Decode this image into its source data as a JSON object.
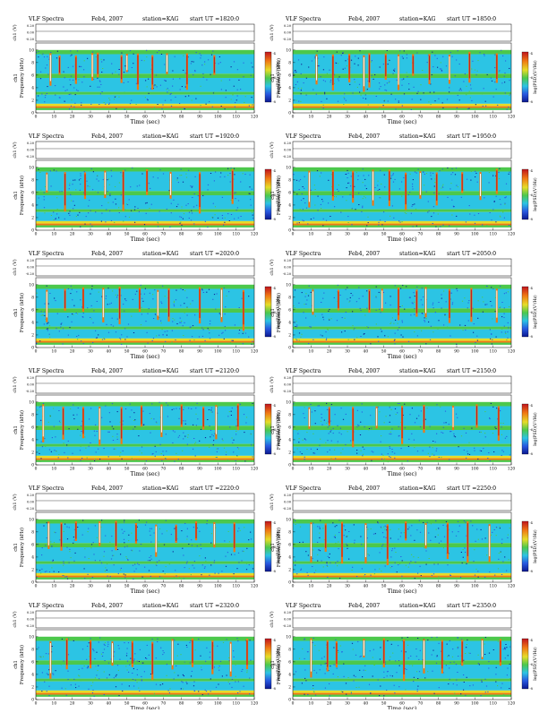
{
  "header": {
    "title": "VLF Spectra",
    "date": "Feb4, 2007",
    "station_label": "station=KAG",
    "start_prefix": "start UT ="
  },
  "axes": {
    "amp_label": "ch1 (V)",
    "amp_ticks": [
      "0.20",
      "0.00",
      "-0.20"
    ],
    "freq_label_ch": "ch1",
    "freq_label": "Frequency (kHz)",
    "freq_ticks": [
      "10",
      "8",
      "6",
      "4",
      "2",
      "0"
    ],
    "time_label": "Time (sec)",
    "time_ticks": [
      "0",
      "10",
      "20",
      "30",
      "40",
      "50",
      "60",
      "70",
      "80",
      "90",
      "100",
      "110",
      "120"
    ],
    "colorbar_label": "log(PSD)(V²/Hz)",
    "colorbar_ticks": [
      "-4",
      "-6",
      "-8"
    ]
  },
  "colors": {
    "high": "#c0141e",
    "upper": "#f07814",
    "mid": "#e6dc28",
    "green": "#4cc84c",
    "cyan": "#2cc4e4",
    "blue": "#2858e0",
    "low": "#0c1890"
  },
  "chart_data": [
    {
      "type": "heatmap",
      "start_ut": "1820:0",
      "x_range_sec": [
        0,
        120
      ],
      "y_range_khz": [
        0,
        10
      ],
      "amp_range_v": [
        -0.2,
        0.2
      ],
      "event_times_sec": [
        8,
        13,
        22,
        31,
        34,
        47,
        50,
        56,
        64,
        72,
        83,
        98
      ]
    },
    {
      "type": "heatmap",
      "start_ut": "1850:0",
      "x_range_sec": [
        0,
        120
      ],
      "y_range_khz": [
        0,
        10
      ],
      "amp_range_v": [
        -0.2,
        0.2
      ],
      "event_times_sec": [
        13,
        22,
        31,
        39,
        42,
        51,
        58,
        66,
        75,
        86,
        97,
        112
      ]
    },
    {
      "type": "heatmap",
      "start_ut": "1920:0",
      "x_range_sec": [
        0,
        120
      ],
      "y_range_khz": [
        0,
        10
      ],
      "amp_range_v": [
        -0.2,
        0.2
      ],
      "event_times_sec": [
        6,
        16,
        27,
        38,
        48,
        61,
        74,
        90,
        108
      ]
    },
    {
      "type": "heatmap",
      "start_ut": "1950:0",
      "x_range_sec": [
        0,
        120
      ],
      "y_range_khz": [
        0,
        10
      ],
      "amp_range_v": [
        -0.2,
        0.2
      ],
      "event_times_sec": [
        9,
        22,
        33,
        44,
        53,
        62,
        70,
        79,
        93,
        103,
        112
      ]
    },
    {
      "type": "heatmap",
      "start_ut": "2020:0",
      "x_range_sec": [
        0,
        120
      ],
      "y_range_khz": [
        0,
        10
      ],
      "amp_range_v": [
        -0.2,
        0.2
      ],
      "event_times_sec": [
        6,
        16,
        26,
        37,
        46,
        57,
        67,
        73,
        90,
        102,
        114
      ]
    },
    {
      "type": "heatmap",
      "start_ut": "2050:0",
      "x_range_sec": [
        0,
        120
      ],
      "y_range_khz": [
        0,
        10
      ],
      "amp_range_v": [
        -0.2,
        0.2
      ],
      "event_times_sec": [
        11,
        25,
        42,
        49,
        58,
        68,
        73,
        86,
        98,
        112
      ]
    },
    {
      "type": "heatmap",
      "start_ut": "2120:0",
      "x_range_sec": [
        0,
        120
      ],
      "y_range_khz": [
        0,
        10
      ],
      "amp_range_v": [
        -0.2,
        0.2
      ],
      "event_times_sec": [
        4,
        15,
        26,
        35,
        47,
        58,
        69,
        80,
        92,
        99,
        111
      ]
    },
    {
      "type": "heatmap",
      "start_ut": "2150:0",
      "x_range_sec": [
        0,
        120
      ],
      "y_range_khz": [
        0,
        10
      ],
      "amp_range_v": [
        -0.2,
        0.2
      ],
      "event_times_sec": [
        9,
        20,
        33,
        46,
        60,
        72,
        88,
        101,
        113
      ]
    },
    {
      "type": "heatmap",
      "start_ut": "2220:0",
      "x_range_sec": [
        0,
        120
      ],
      "y_range_khz": [
        0,
        10
      ],
      "amp_range_v": [
        -0.2,
        0.2
      ],
      "event_times_sec": [
        7,
        14,
        22,
        35,
        44,
        55,
        66,
        77,
        88,
        98,
        109
      ]
    },
    {
      "type": "heatmap",
      "start_ut": "2250:0",
      "x_range_sec": [
        0,
        120
      ],
      "y_range_khz": [
        0,
        10
      ],
      "amp_range_v": [
        -0.2,
        0.2
      ],
      "event_times_sec": [
        10,
        18,
        27,
        40,
        52,
        62,
        73,
        85,
        96,
        108
      ]
    },
    {
      "type": "heatmap",
      "start_ut": "2320:0",
      "x_range_sec": [
        0,
        120
      ],
      "y_range_khz": [
        0,
        10
      ],
      "amp_range_v": [
        -0.2,
        0.2
      ],
      "event_times_sec": [
        8,
        17,
        30,
        42,
        53,
        64,
        75,
        86,
        97,
        107,
        116
      ]
    },
    {
      "type": "heatmap",
      "start_ut": "2350:0",
      "x_range_sec": [
        0,
        120
      ],
      "y_range_khz": [
        0,
        10
      ],
      "amp_range_v": [
        -0.2,
        0.2
      ],
      "event_times_sec": [
        10,
        19,
        24,
        39,
        50,
        61,
        72,
        82,
        93,
        104,
        114
      ]
    }
  ]
}
